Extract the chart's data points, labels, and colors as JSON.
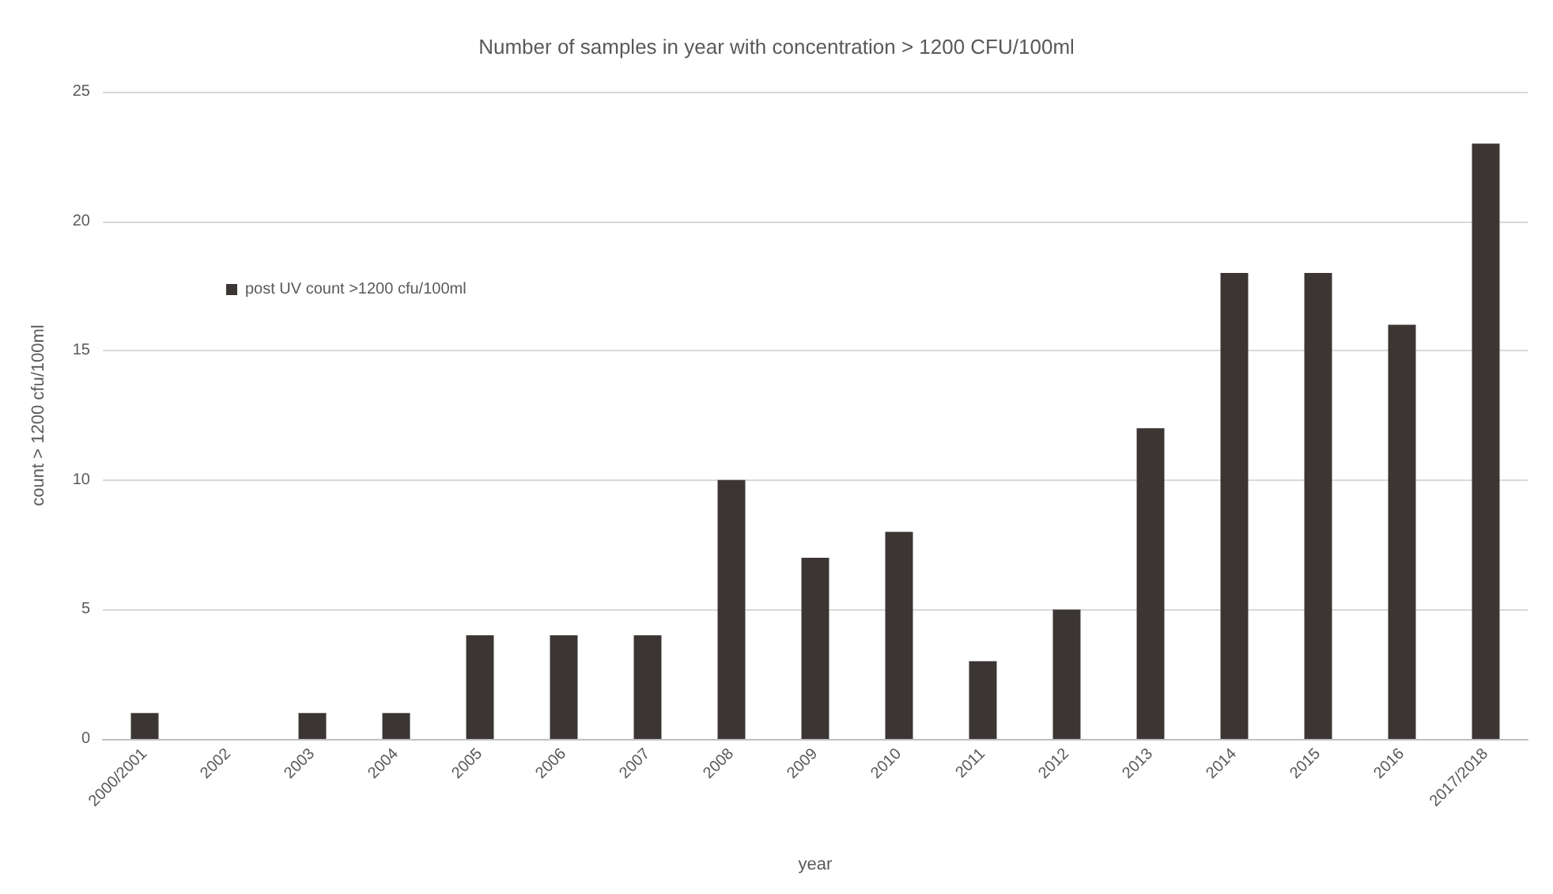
{
  "chart_data": {
    "type": "bar",
    "title": "Number of samples in year with concentration > 1200 CFU/100ml",
    "xlabel": "year",
    "ylabel": "count > 1200 cfu/100ml",
    "categories": [
      "2000/2001",
      "2002",
      "2003",
      "2004",
      "2005",
      "2006",
      "2007",
      "2008",
      "2009",
      "2010",
      "2011",
      "2012",
      "2013",
      "2014",
      "2015",
      "2016",
      "2017/2018"
    ],
    "series": [
      {
        "name": "post UV count >1200 cfu/100ml",
        "color": "#3b3634",
        "values": [
          1,
          0,
          1,
          1,
          4,
          4,
          4,
          10,
          7,
          8,
          3,
          5,
          12,
          18,
          18,
          16,
          23
        ]
      }
    ],
    "ylim": [
      0,
      25
    ],
    "yticks": [
      0,
      5,
      10,
      15,
      20,
      25
    ],
    "grid": "y",
    "legend": "top left"
  }
}
